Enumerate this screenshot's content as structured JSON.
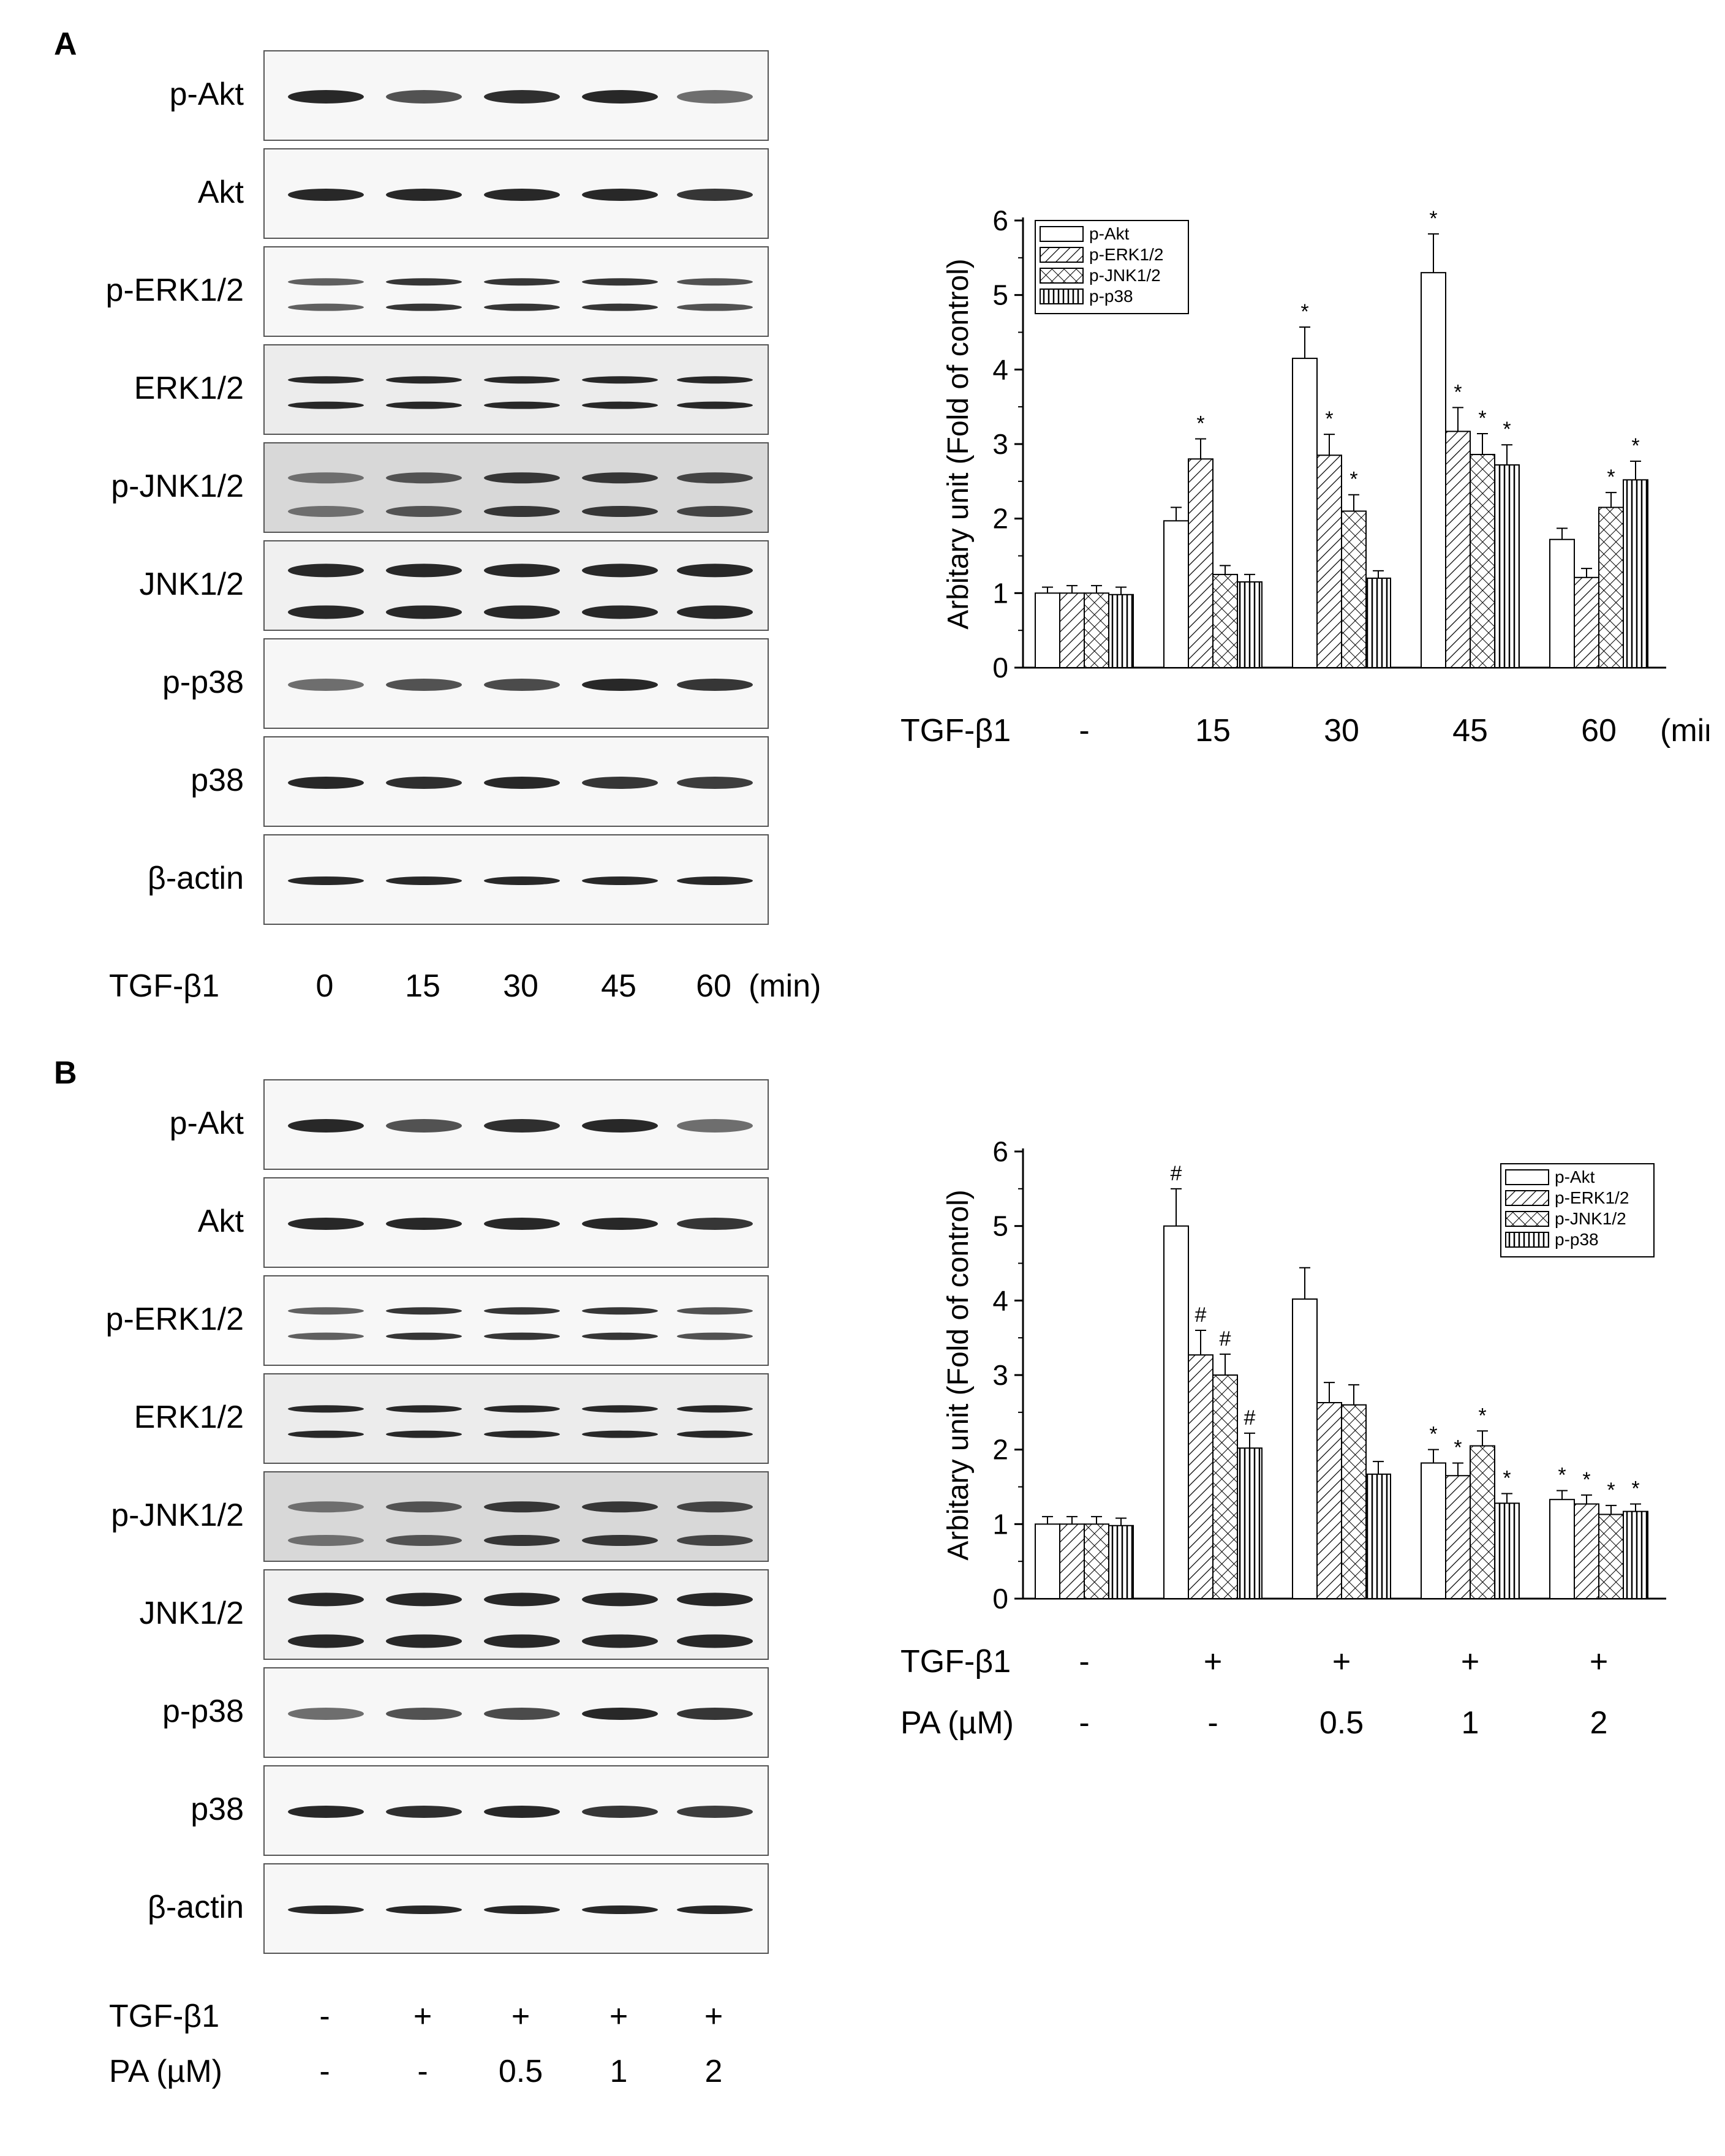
{
  "panels": [
    {
      "letter": "A",
      "blot_labels": [
        "p-Akt",
        "Akt",
        "p-ERK1/2",
        "ERK1/2",
        "p-JNK1/2",
        "JNK1/2",
        "p-p38",
        "p38",
        "β-actin"
      ],
      "row1_label": "TGF-β1",
      "row1_lanes": [
        "0",
        "15",
        "30",
        "45",
        "60"
      ],
      "row1_unit": "(min)",
      "row2_label": "",
      "row2_lanes": []
    },
    {
      "letter": "B",
      "blot_labels": [
        "p-Akt",
        "Akt",
        "p-ERK1/2",
        "ERK1/2",
        "p-JNK1/2",
        "JNK1/2",
        "p-p38",
        "p38",
        "β-actin"
      ],
      "row1_label": "TGF-β1",
      "row1_lanes": [
        "-",
        "+",
        "+",
        "+",
        "+"
      ],
      "row1_unit": "",
      "row2_label": "PA (µM)",
      "row2_lanes": [
        "-",
        "-",
        "0.5",
        "1",
        "2"
      ]
    }
  ],
  "chart_data": [
    {
      "type": "bar",
      "ylabel": "Arbitary unit (Fold of control)",
      "ylim": [
        0,
        6
      ],
      "yticks": [
        "0",
        "1",
        "2",
        "3",
        "4",
        "5",
        "6"
      ],
      "legend_position": "top-left",
      "categories": [
        "-",
        "15",
        "30",
        "45",
        "60"
      ],
      "x_row_labels": [
        {
          "label": "TGF-β1",
          "values": [
            "-",
            "15",
            "30",
            "45",
            "60"
          ],
          "unit": "(min)"
        }
      ],
      "series": [
        {
          "name": "p-Akt",
          "pattern": "plain",
          "values": [
            1.0,
            1.97,
            4.15,
            5.3,
            1.72
          ],
          "errors": [
            0.08,
            0.18,
            0.42,
            0.52,
            0.15
          ],
          "marks": [
            "",
            "",
            "*",
            "*",
            ""
          ]
        },
        {
          "name": "p-ERK1/2",
          "pattern": "diagonal",
          "values": [
            1.0,
            2.8,
            2.85,
            3.17,
            1.21
          ],
          "errors": [
            0.1,
            0.27,
            0.28,
            0.32,
            0.12
          ],
          "marks": [
            "",
            "*",
            "*",
            "*",
            ""
          ]
        },
        {
          "name": "p-JNK1/2",
          "pattern": "crosshatch",
          "values": [
            1.0,
            1.25,
            2.1,
            2.86,
            2.15
          ],
          "errors": [
            0.1,
            0.12,
            0.22,
            0.28,
            0.2
          ],
          "marks": [
            "",
            "",
            "*",
            "*",
            "*"
          ]
        },
        {
          "name": "p-p38",
          "pattern": "vertical",
          "values": [
            0.98,
            1.15,
            1.2,
            2.72,
            2.52
          ],
          "errors": [
            0.1,
            0.1,
            0.1,
            0.27,
            0.25
          ],
          "marks": [
            "",
            "",
            "",
            "*",
            "*"
          ]
        }
      ]
    },
    {
      "type": "bar",
      "ylabel": "Arbitary unit (Fold of control)",
      "ylim": [
        0,
        6
      ],
      "yticks": [
        "0",
        "1",
        "2",
        "3",
        "4",
        "5",
        "6"
      ],
      "legend_position": "top-right",
      "categories": [
        "-",
        "+/-",
        "+/0.5",
        "+/1",
        "+/2"
      ],
      "x_row_labels": [
        {
          "label": "TGF-β1",
          "values": [
            "-",
            "+",
            "+",
            "+",
            "+"
          ],
          "unit": ""
        },
        {
          "label": "PA (µM)",
          "values": [
            "-",
            "-",
            "0.5",
            "1",
            "2"
          ],
          "unit": ""
        }
      ],
      "series": [
        {
          "name": "p-Akt",
          "pattern": "plain",
          "values": [
            1.0,
            5.0,
            4.02,
            1.82,
            1.33
          ],
          "errors": [
            0.1,
            0.5,
            0.42,
            0.18,
            0.12
          ],
          "marks": [
            "",
            "#",
            "",
            "*",
            "*"
          ]
        },
        {
          "name": "p-ERK1/2",
          "pattern": "diagonal",
          "values": [
            1.0,
            3.27,
            2.63,
            1.65,
            1.27
          ],
          "errors": [
            0.1,
            0.33,
            0.27,
            0.17,
            0.12
          ],
          "marks": [
            "",
            "#",
            "",
            "*",
            "*"
          ]
        },
        {
          "name": "p-JNK1/2",
          "pattern": "crosshatch",
          "values": [
            1.0,
            3.0,
            2.6,
            2.05,
            1.13
          ],
          "errors": [
            0.1,
            0.28,
            0.27,
            0.2,
            0.12
          ],
          "marks": [
            "",
            "#",
            "",
            "*",
            "*"
          ]
        },
        {
          "name": "p-p38",
          "pattern": "vertical",
          "values": [
            0.98,
            2.02,
            1.67,
            1.28,
            1.17
          ],
          "errors": [
            0.1,
            0.2,
            0.17,
            0.13,
            0.1
          ],
          "marks": [
            "",
            "#",
            "",
            "*",
            "*"
          ]
        }
      ]
    }
  ]
}
